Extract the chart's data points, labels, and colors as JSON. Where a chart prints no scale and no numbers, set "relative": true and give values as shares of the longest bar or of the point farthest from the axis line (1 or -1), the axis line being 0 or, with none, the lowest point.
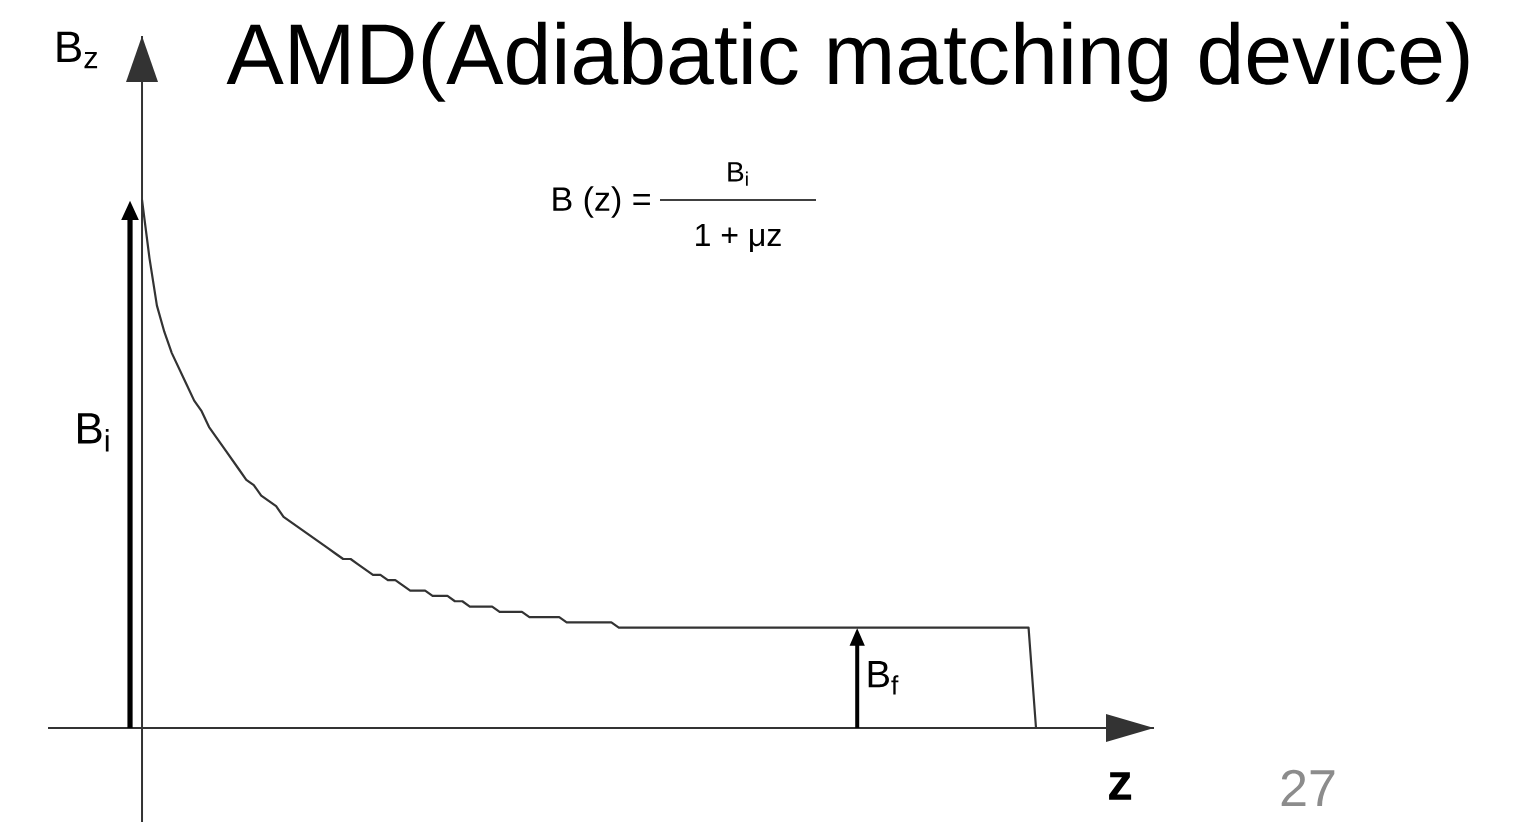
{
  "chart_data": {
    "type": "line",
    "relative": true,
    "title": "AMD(Adiabatic matching device)",
    "xlabel": "z",
    "ylabel": "B$_{z}$",
    "categories": [
      null,
      null,
      null,
      null,
      null,
      null,
      null,
      null,
      null,
      null,
      null,
      null,
      null,
      null,
      null,
      null,
      null,
      null,
      null,
      null,
      null,
      null,
      null,
      null,
      null,
      null,
      null,
      null,
      null,
      null,
      null,
      null,
      null,
      null,
      null,
      null,
      null,
      null,
      null,
      null,
      null,
      null,
      null,
      null,
      null,
      null,
      null,
      null,
      null,
      null,
      null,
      null,
      null,
      null,
      null,
      null,
      null,
      null,
      null,
      null,
      null,
      null,
      null,
      null,
      null,
      null,
      null,
      null,
      null,
      null,
      null,
      null,
      null,
      null,
      null,
      null,
      null,
      null,
      null,
      null,
      null,
      null,
      null,
      null,
      null,
      null,
      null,
      null,
      null,
      null,
      null,
      null,
      null,
      null,
      null,
      null,
      null,
      null,
      null,
      null,
      null,
      null,
      null,
      null,
      null,
      null,
      null,
      null,
      null,
      null,
      null,
      null,
      null,
      null,
      null,
      null,
      null,
      null,
      null,
      null,
      null
    ],
    "series": [
      {
        "color": "#333333",
        "values": [
          1.0,
          0.89,
          0.8,
          0.75,
          0.71,
          0.68,
          0.65,
          0.62,
          0.6,
          0.57,
          0.55,
          0.53,
          0.51,
          0.49,
          0.47,
          0.46,
          0.44,
          0.43,
          0.42,
          0.4,
          0.39,
          0.38,
          0.37,
          0.36,
          0.35,
          0.34,
          0.33,
          0.32,
          0.32,
          0.31,
          0.3,
          0.29,
          0.29,
          0.28,
          0.28,
          0.27,
          0.26,
          0.26,
          0.26,
          0.25,
          0.25,
          0.25,
          0.24,
          0.24,
          0.23,
          0.23,
          0.23,
          0.23,
          0.22,
          0.22,
          0.22,
          0.22,
          0.21,
          0.21,
          0.21,
          0.21,
          0.21,
          0.2,
          0.2,
          0.2,
          0.2,
          0.2,
          0.2,
          0.2,
          0.19,
          0.19,
          0.19,
          0.19,
          0.19,
          0.19,
          0.19,
          0.19,
          0.19,
          0.19,
          0.19,
          0.19,
          0.19,
          0.19,
          0.19,
          0.19,
          0.19,
          0.19,
          0.19,
          0.19,
          0.19,
          0.19,
          0.19,
          0.19,
          0.19,
          0.19,
          0.19,
          0.19,
          0.19,
          0.19,
          0.19,
          0.19,
          0.19,
          0.19,
          0.19,
          0.19,
          0.19,
          0.19,
          0.19,
          0.19,
          0.19,
          0.19,
          0.19,
          0.19,
          0.19,
          0.19,
          0.19,
          0.19,
          0.19,
          0.19,
          0.19,
          0.19,
          0.19,
          0.19,
          0.19,
          0.19,
          0
        ]
      }
    ],
    "annotations": [
      "B$_{i}$",
      "B$_{f}$",
      "B (z) =",
      "B$_{i}$",
      "1 + μz",
      "27"
    ]
  }
}
